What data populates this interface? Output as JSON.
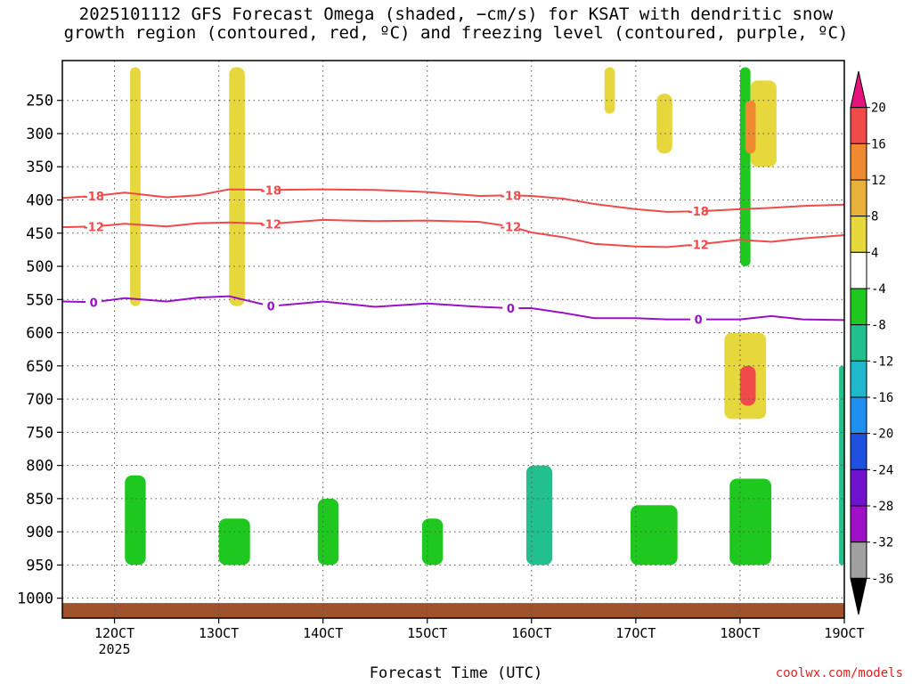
{
  "title": {
    "line1": "2025101112 GFS Forecast Omega (shaded, −cm/s) for KSAT with dendritic snow",
    "line2": "growth region (contoured, red, ºC) and freezing level (contoured, purple, ºC)"
  },
  "xlabel": "Forecast Time (UTC)",
  "credit": "coolwx.com/models",
  "colors": {
    "snow_contour": "#f04a4a",
    "freezing_contour": "#9a10c8",
    "ground": "#a0522d"
  },
  "chart_data": {
    "type": "heatmap",
    "x_axis": {
      "range": [
        "2025-10-11 12Z",
        "2025-10-19 00Z"
      ],
      "ticks": [
        "12OCT",
        "13OCT",
        "14OCT",
        "15OCT",
        "16OCT",
        "17OCT",
        "18OCT",
        "19OCT"
      ],
      "tick_day": [
        12,
        13,
        14,
        15,
        16,
        17,
        18,
        19
      ],
      "year_label": "2025",
      "grid": true
    },
    "y_axis": {
      "unit": "hPa",
      "inverted": true,
      "range": [
        1030,
        190
      ],
      "ticks": [
        "250",
        "300",
        "350",
        "400",
        "450",
        "500",
        "550",
        "600",
        "650",
        "700",
        "750",
        "800",
        "850",
        "900",
        "950",
        "1000"
      ],
      "tick_values": [
        250,
        300,
        350,
        400,
        450,
        500,
        550,
        600,
        650,
        700,
        750,
        800,
        850,
        900,
        950,
        1000
      ],
      "grid": true
    },
    "colorbar": {
      "labels": [
        "20",
        "16",
        "12",
        "8",
        "4",
        "-4",
        "-8",
        "-12",
        "-16",
        "-20",
        "-24",
        "-28",
        "-32",
        "-36"
      ],
      "colors": [
        "#e5137b",
        "#f04a4a",
        "#ef8a30",
        "#e8b23a",
        "#e6d83c",
        "#ffffff",
        "#1ec81e",
        "#22c08c",
        "#20b8cc",
        "#2090f0",
        "#2050e0",
        "#7012d0",
        "#a010c8",
        "#a0a0a0",
        "#000000"
      ]
    },
    "series": [
      {
        "name": "-18",
        "color": "#f04a4a",
        "x_day": [
          11.5,
          11.8,
          12.1,
          12.5,
          12.8,
          13.1,
          13.5,
          14.0,
          14.5,
          15.0,
          15.5,
          15.8,
          16.0,
          16.3,
          16.6,
          17.0,
          17.3,
          17.6,
          18.0,
          18.3,
          18.6,
          19.0
        ],
        "values": [
          397,
          394,
          389,
          396,
          393,
          384,
          385,
          384,
          385,
          388,
          394,
          393,
          394,
          398,
          406,
          414,
          418,
          417,
          414,
          412,
          409,
          407
        ]
      },
      {
        "name": "-12",
        "color": "#f04a4a",
        "x_day": [
          11.5,
          11.8,
          12.1,
          12.5,
          12.8,
          13.1,
          13.5,
          14.0,
          14.5,
          15.0,
          15.5,
          15.8,
          16.0,
          16.3,
          16.6,
          17.0,
          17.3,
          17.6,
          18.0,
          18.3,
          18.6,
          19.0
        ],
        "values": [
          441,
          440,
          436,
          440,
          435,
          434,
          436,
          430,
          432,
          431,
          433,
          440,
          449,
          456,
          466,
          470,
          471,
          467,
          460,
          463,
          458,
          453
        ]
      },
      {
        "name": "0",
        "color": "#9a10c8",
        "x_day": [
          11.5,
          11.8,
          12.1,
          12.5,
          12.8,
          13.1,
          13.5,
          14.0,
          14.5,
          15.0,
          15.5,
          15.8,
          16.0,
          16.3,
          16.6,
          17.0,
          17.3,
          17.6,
          18.0,
          18.3,
          18.6,
          19.0
        ],
        "values": [
          553,
          554,
          548,
          553,
          547,
          545,
          560,
          553,
          561,
          556,
          561,
          563,
          563,
          570,
          578,
          578,
          580,
          580,
          580,
          575,
          580,
          581
        ]
      }
    ],
    "omega_regions": [
      {
        "x": [
          12.1,
          12.3
        ],
        "p": [
          815,
          950
        ],
        "v": -8
      },
      {
        "x": [
          13.0,
          13.3
        ],
        "p": [
          880,
          950
        ],
        "v": -8
      },
      {
        "x": [
          13.95,
          14.15
        ],
        "p": [
          850,
          950
        ],
        "v": -8
      },
      {
        "x": [
          14.95,
          15.15
        ],
        "p": [
          880,
          950
        ],
        "v": -8
      },
      {
        "x": [
          15.95,
          16.2
        ],
        "p": [
          800,
          950
        ],
        "v": -12
      },
      {
        "x": [
          16.95,
          17.4
        ],
        "p": [
          860,
          950
        ],
        "v": -8
      },
      {
        "x": [
          17.9,
          18.3
        ],
        "p": [
          820,
          950
        ],
        "v": -8
      },
      {
        "x": [
          18.95,
          19.0
        ],
        "p": [
          650,
          950
        ],
        "v": -12
      },
      {
        "x": [
          18.0,
          18.1
        ],
        "p": [
          200,
          500
        ],
        "v": -8
      },
      {
        "x": [
          14.8,
          14.9
        ],
        "p": [
          240,
          350
        ],
        "v": -4
      },
      {
        "x": [
          16.2,
          16.3
        ],
        "p": [
          240,
          330
        ],
        "v": -4
      },
      {
        "x": [
          12.15,
          12.25
        ],
        "p": [
          200,
          560
        ],
        "v": 4
      },
      {
        "x": [
          13.1,
          13.25
        ],
        "p": [
          200,
          560
        ],
        "v": 4
      },
      {
        "x": [
          16.7,
          16.8
        ],
        "p": [
          200,
          270
        ],
        "v": 4
      },
      {
        "x": [
          17.2,
          17.35
        ],
        "p": [
          240,
          330
        ],
        "v": 4
      },
      {
        "x": [
          18.1,
          18.35
        ],
        "p": [
          220,
          350
        ],
        "v": 4
      },
      {
        "x": [
          18.05,
          18.15
        ],
        "p": [
          250,
          330
        ],
        "v": 12
      },
      {
        "x": [
          17.85,
          18.25
        ],
        "p": [
          600,
          730
        ],
        "v": 4
      },
      {
        "x": [
          18.0,
          18.15
        ],
        "p": [
          650,
          710
        ],
        "v": 16
      }
    ]
  }
}
